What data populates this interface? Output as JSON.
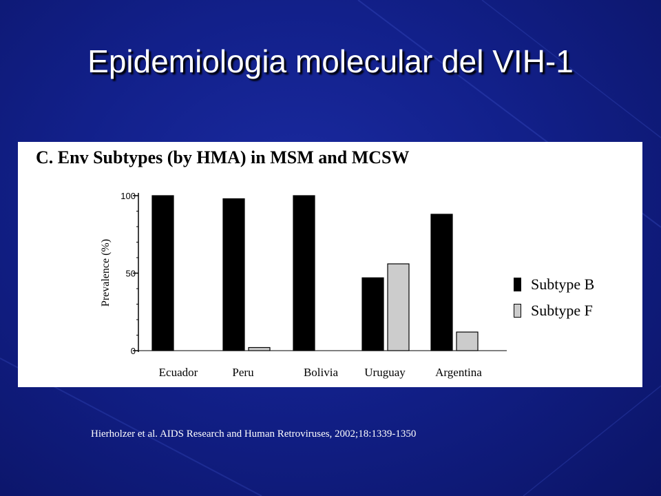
{
  "slide": {
    "title": "Epidemiologia molecular del VIH-1"
  },
  "chart_data": {
    "type": "bar",
    "title": "C.  Env Subtypes (by HMA) in MSM and MCSW",
    "xlabel": "",
    "ylabel": "Prevalence (%)",
    "ylim": [
      0,
      100
    ],
    "yticks": [
      "0",
      "50",
      "100"
    ],
    "categories": [
      "Ecuador",
      "Peru",
      "Bolivia",
      "Uruguay",
      "Argentina"
    ],
    "series": [
      {
        "name": "Subtype B",
        "color": "#000000",
        "values": [
          100,
          98,
          100,
          47,
          88
        ]
      },
      {
        "name": "Subtype F",
        "color": "#cccccc",
        "values": [
          0,
          2,
          0,
          56,
          12
        ]
      }
    ],
    "legend": "right"
  },
  "citation": "Hierholzer et al. AIDS Research and Human Retroviruses, 2002;18:1339-1350"
}
